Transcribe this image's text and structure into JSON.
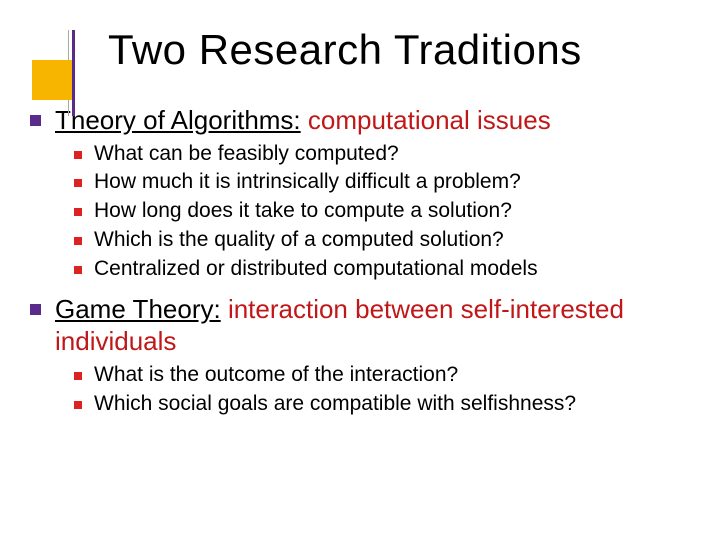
{
  "colors": {
    "accent_box": "#f7b500",
    "accent_line": "#5a2b8a",
    "thin_line": "#a9a9a9",
    "l1_bullet": "#5a2b8a",
    "l2_bullet": "#d22",
    "highlight_text": "#c01818",
    "body_text": "#000000",
    "background": "#ffffff"
  },
  "typography": {
    "title_fontsize": 42,
    "l1_fontsize": 26,
    "l2_fontsize": 21,
    "font_family": "Comic Sans MS"
  },
  "title": "Two Research Traditions",
  "sections": [
    {
      "heading_prefix": "Theory of Algorithms:",
      "heading_suffix": "computational issues",
      "subs": [
        "What can be feasibly computed?",
        "How much it is intrinsically difficult a problem?",
        "How long does it take to compute a solution?",
        "Which is the quality of a computed solution?",
        "Centralized or distributed computational models"
      ]
    },
    {
      "heading_prefix": "Game Theory:",
      "heading_suffix": "interaction between self-interested individuals",
      "subs": [
        "What is the outcome of the interaction?",
        "Which social goals are compatible with selfishness?"
      ]
    }
  ]
}
